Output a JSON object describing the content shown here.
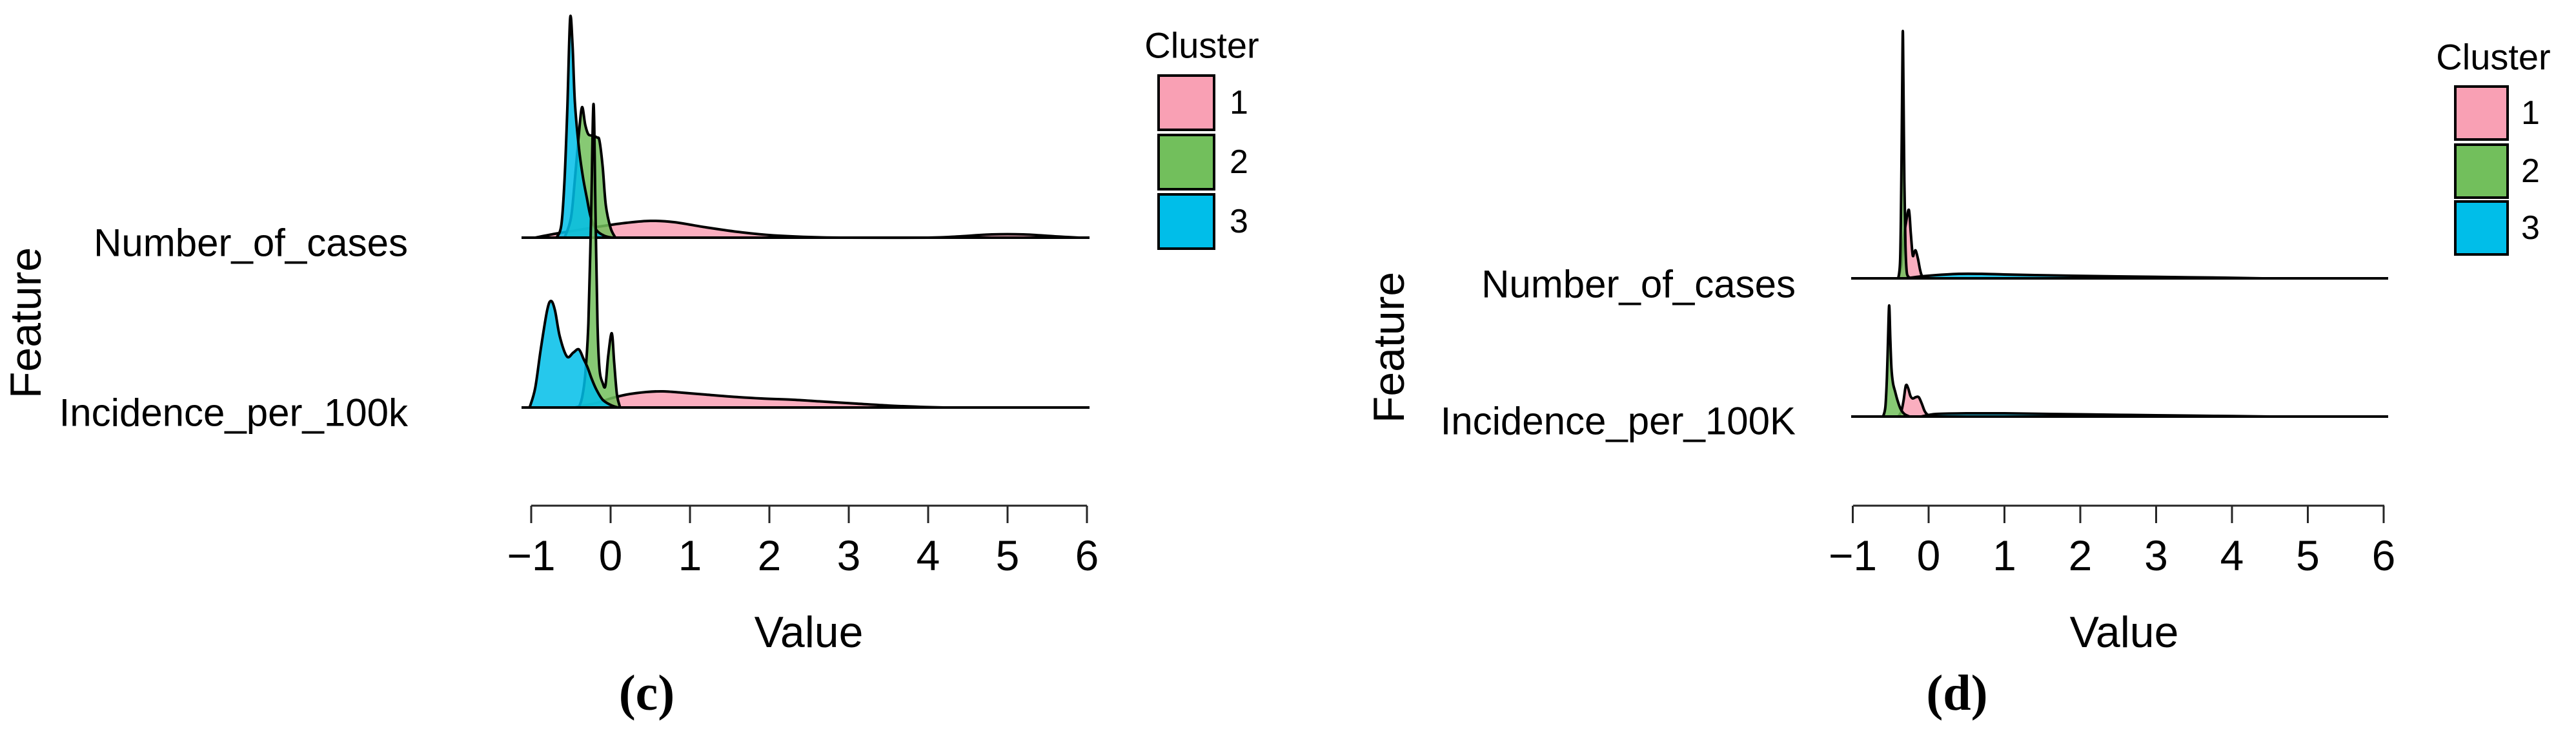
{
  "figure": {
    "background": "#ffffff",
    "outline_color": "#000000",
    "y_axis_title": "Feature",
    "x_axis_title": "Value"
  },
  "legend": {
    "title": "Cluster",
    "entries": [
      {
        "label": "1",
        "color": "#F9A0B4"
      },
      {
        "label": "2",
        "color": "#72BF5C"
      },
      {
        "label": "3",
        "color": "#00BEE9"
      }
    ]
  },
  "chart_data": [
    {
      "type": "area",
      "subtype": "ridgeline-density",
      "panel": "c",
      "caption": "(c)",
      "xlabel": "Value",
      "ylabel": "Feature",
      "xlim": [
        -1,
        6
      ],
      "xticks": [
        "−1",
        "0",
        "1",
        "2",
        "3",
        "4",
        "5",
        "6"
      ],
      "xtick_values": [
        -1,
        0,
        1,
        2,
        3,
        4,
        5,
        6
      ],
      "legend_position": "right-top",
      "grid": false,
      "point_format": "[value, density_height_px]",
      "rows": [
        {
          "feature": "Number_of_cases",
          "series": [
            {
              "cluster": "1",
              "points": [
                [
                  -0.95,
                  0
                ],
                [
                  -0.7,
                  6
                ],
                [
                  -0.4,
                  12
                ],
                [
                  -0.1,
                  18
                ],
                [
                  0.2,
                  23
                ],
                [
                  0.5,
                  26
                ],
                [
                  0.8,
                  24
                ],
                [
                  1.2,
                  16
                ],
                [
                  1.6,
                  9
                ],
                [
                  2.0,
                  4
                ],
                [
                  2.5,
                  1
                ],
                [
                  3.0,
                  0
                ],
                [
                  4.0,
                  0
                ],
                [
                  4.4,
                  2
                ],
                [
                  4.8,
                  5
                ],
                [
                  5.2,
                  5
                ],
                [
                  5.6,
                  2
                ],
                [
                  5.9,
                  0
                ]
              ]
            },
            {
              "cluster": "2",
              "points": [
                [
                  -0.58,
                  0
                ],
                [
                  -0.5,
                  30
                ],
                [
                  -0.45,
                  90
                ],
                [
                  -0.4,
                  160
                ],
                [
                  -0.36,
                  202
                ],
                [
                  -0.32,
                  175
                ],
                [
                  -0.28,
                  160
                ],
                [
                  -0.22,
                  158
                ],
                [
                  -0.17,
                  155
                ],
                [
                  -0.14,
                  150
                ],
                [
                  -0.1,
                  110
                ],
                [
                  -0.06,
                  50
                ],
                [
                  0.0,
                  15
                ],
                [
                  0.06,
                  0
                ]
              ]
            },
            {
              "cluster": "3",
              "points": [
                [
                  -0.68,
                  0
                ],
                [
                  -0.62,
                  20
                ],
                [
                  -0.58,
                  90
                ],
                [
                  -0.545,
                  200
                ],
                [
                  -0.51,
                  339
                ],
                [
                  -0.48,
                  300
                ],
                [
                  -0.45,
                  210
                ],
                [
                  -0.4,
                  140
                ],
                [
                  -0.35,
                  95
                ],
                [
                  -0.3,
                  62
                ],
                [
                  -0.25,
                  32
                ],
                [
                  -0.18,
                  12
                ],
                [
                  -0.08,
                  3
                ],
                [
                  0.02,
                  0
                ]
              ]
            }
          ]
        },
        {
          "feature": "Incidence_per_100k",
          "series": [
            {
              "cluster": "1",
              "points": [
                [
                  -0.45,
                  0
                ],
                [
                  -0.3,
                  4
                ],
                [
                  -0.15,
                  8
                ],
                [
                  0.0,
                  14
                ],
                [
                  0.2,
                  20
                ],
                [
                  0.45,
                  24
                ],
                [
                  0.66,
                  25
                ],
                [
                  0.9,
                  23
                ],
                [
                  1.2,
                  20
                ],
                [
                  1.5,
                  17
                ],
                [
                  1.9,
                  14
                ],
                [
                  2.3,
                  12
                ],
                [
                  2.7,
                  9
                ],
                [
                  3.1,
                  6
                ],
                [
                  3.5,
                  3
                ],
                [
                  3.9,
                  1
                ],
                [
                  4.2,
                  0
                ]
              ]
            },
            {
              "cluster": "2",
              "points": [
                [
                  -0.4,
                  0
                ],
                [
                  -0.36,
                  15
                ],
                [
                  -0.32,
                  50
                ],
                [
                  -0.28,
                  130
                ],
                [
                  -0.245,
                  300
                ],
                [
                  -0.215,
                  470
                ],
                [
                  -0.19,
                  300
                ],
                [
                  -0.165,
                  130
                ],
                [
                  -0.14,
                  60
                ],
                [
                  -0.1,
                  38
                ],
                [
                  -0.065,
                  34
                ],
                [
                  -0.03,
                  80
                ],
                [
                  0.015,
                  115
                ],
                [
                  0.045,
                  70
                ],
                [
                  0.08,
                  20
                ],
                [
                  0.12,
                  0
                ]
              ]
            },
            {
              "cluster": "3",
              "points": [
                [
                  -1.02,
                  0
                ],
                [
                  -0.95,
                  30
                ],
                [
                  -0.88,
                  90
                ],
                [
                  -0.8,
                  150
                ],
                [
                  -0.75,
                  165
                ],
                [
                  -0.7,
                  150
                ],
                [
                  -0.64,
                  110
                ],
                [
                  -0.55,
                  79
                ],
                [
                  -0.47,
                  85
                ],
                [
                  -0.4,
                  90
                ],
                [
                  -0.34,
                  75
                ],
                [
                  -0.29,
                  62
                ],
                [
                  -0.24,
                  45
                ],
                [
                  -0.18,
                  28
                ],
                [
                  -0.1,
                  12
                ],
                [
                  0.0,
                  4
                ],
                [
                  0.09,
                  0
                ]
              ]
            }
          ]
        }
      ]
    },
    {
      "type": "area",
      "subtype": "ridgeline-density",
      "panel": "d",
      "caption": "(d)",
      "xlabel": "Value",
      "ylabel": "Feature",
      "xlim": [
        -1,
        6
      ],
      "xticks": [
        "−1",
        "0",
        "1",
        "2",
        "3",
        "4",
        "5",
        "6"
      ],
      "xtick_values": [
        -1,
        0,
        1,
        2,
        3,
        4,
        5,
        6
      ],
      "legend_position": "right-top",
      "grid": false,
      "point_format": "[value, density_height_px]",
      "rows": [
        {
          "feature": "Number_of_cases",
          "series": [
            {
              "cluster": "1",
              "points": [
                [
                  -0.4,
                  0
                ],
                [
                  -0.36,
                  20
                ],
                [
                  -0.33,
                  60
                ],
                [
                  -0.3,
                  85
                ],
                [
                  -0.26,
                  106
                ],
                [
                  -0.235,
                  70
                ],
                [
                  -0.21,
                  36
                ],
                [
                  -0.19,
                  40
                ],
                [
                  -0.17,
                  43
                ],
                [
                  -0.14,
                  30
                ],
                [
                  -0.11,
                  12
                ],
                [
                  -0.08,
                  3
                ],
                [
                  0.0,
                  0
                ]
              ]
            },
            {
              "cluster": "2",
              "points": [
                [
                  -0.4,
                  0
                ],
                [
                  -0.375,
                  30
                ],
                [
                  -0.36,
                  150
                ],
                [
                  -0.348,
                  300
                ],
                [
                  -0.34,
                  383
                ],
                [
                  -0.332,
                  300
                ],
                [
                  -0.32,
                  150
                ],
                [
                  -0.305,
                  50
                ],
                [
                  -0.29,
                  12
                ],
                [
                  -0.27,
                  3
                ],
                [
                  -0.23,
                  0
                ]
              ]
            },
            {
              "cluster": "3",
              "points": [
                [
                  -0.3,
                  0
                ],
                [
                  -0.1,
                  3
                ],
                [
                  0.1,
                  5
                ],
                [
                  0.4,
                  7
                ],
                [
                  0.7,
                  7
                ],
                [
                  1.0,
                  6
                ],
                [
                  1.4,
                  5
                ],
                [
                  1.9,
                  4
                ],
                [
                  2.5,
                  3
                ],
                [
                  3.2,
                  2
                ],
                [
                  3.9,
                  1
                ],
                [
                  4.4,
                  0
                ]
              ]
            }
          ]
        },
        {
          "feature": "Incidence_per_100K",
          "series": [
            {
              "cluster": "1",
              "points": [
                [
                  -0.4,
                  0
                ],
                [
                  -0.36,
                  8
                ],
                [
                  -0.33,
                  25
                ],
                [
                  -0.3,
                  48
                ],
                [
                  -0.27,
                  44
                ],
                [
                  -0.24,
                  32
                ],
                [
                  -0.21,
                  28
                ],
                [
                  -0.17,
                  30
                ],
                [
                  -0.13,
                  30
                ],
                [
                  -0.09,
                  20
                ],
                [
                  -0.05,
                  8
                ],
                [
                  0.0,
                  2
                ],
                [
                  0.1,
                  0
                ]
              ]
            },
            {
              "cluster": "2",
              "points": [
                [
                  -0.6,
                  0
                ],
                [
                  -0.57,
                  15
                ],
                [
                  -0.55,
                  60
                ],
                [
                  -0.535,
                  120
                ],
                [
                  -0.52,
                  172
                ],
                [
                  -0.505,
                  120
                ],
                [
                  -0.49,
                  75
                ],
                [
                  -0.47,
                  52
                ],
                [
                  -0.44,
                  38
                ],
                [
                  -0.41,
                  25
                ],
                [
                  -0.37,
                  12
                ],
                [
                  -0.32,
                  4
                ],
                [
                  -0.25,
                  0
                ]
              ]
            },
            {
              "cluster": "3",
              "points": [
                [
                  -0.1,
                  0
                ],
                [
                  0.1,
                  4
                ],
                [
                  0.5,
                  5
                ],
                [
                  1.0,
                  5
                ],
                [
                  1.6,
                  4
                ],
                [
                  2.3,
                  3
                ],
                [
                  3.0,
                  2
                ],
                [
                  3.8,
                  1
                ],
                [
                  4.5,
                  0
                ]
              ]
            }
          ]
        }
      ]
    }
  ]
}
